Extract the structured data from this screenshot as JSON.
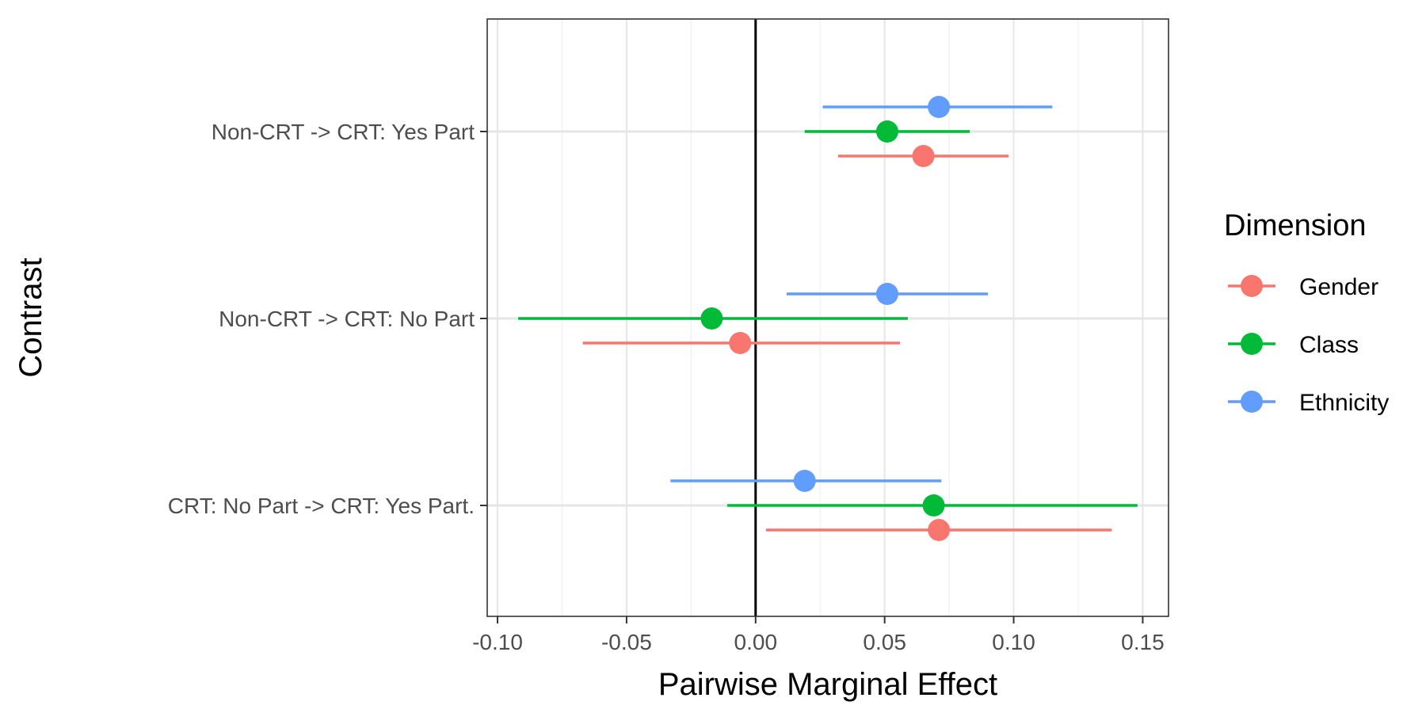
{
  "chart_data": {
    "type": "scatter",
    "title": "",
    "xlabel": "Pairwise Marginal Effect",
    "ylabel": "Contrast",
    "xlim": [
      -0.104,
      0.16
    ],
    "x_ticks": [
      -0.1,
      -0.05,
      0.0,
      0.05,
      0.1,
      0.15
    ],
    "x_tick_labels": [
      "-0.10",
      "-0.05",
      "0.00",
      "0.05",
      "0.10",
      "0.15"
    ],
    "categories": [
      "Non-CRT -> CRT: Yes Part",
      "Non-CRT -> CRT: No Part",
      "CRT: No Part -> CRT: Yes Part."
    ],
    "reference_line": 0,
    "grid": true,
    "legend": {
      "title": "Dimension",
      "position": "right"
    },
    "series": [
      {
        "name": "Gender",
        "color": "#F8766D",
        "points": [
          {
            "category": "Non-CRT -> CRT: Yes Part",
            "estimate": 0.065,
            "lower": 0.032,
            "upper": 0.098
          },
          {
            "category": "Non-CRT -> CRT: No Part",
            "estimate": -0.006,
            "lower": -0.067,
            "upper": 0.056
          },
          {
            "category": "CRT: No Part -> CRT: Yes Part.",
            "estimate": 0.071,
            "lower": 0.004,
            "upper": 0.138
          }
        ]
      },
      {
        "name": "Class",
        "color": "#00BA38",
        "points": [
          {
            "category": "Non-CRT -> CRT: Yes Part",
            "estimate": 0.051,
            "lower": 0.019,
            "upper": 0.083
          },
          {
            "category": "Non-CRT -> CRT: No Part",
            "estimate": -0.017,
            "lower": -0.092,
            "upper": 0.059
          },
          {
            "category": "CRT: No Part -> CRT: Yes Part.",
            "estimate": 0.069,
            "lower": -0.011,
            "upper": 0.148
          }
        ]
      },
      {
        "name": "Ethnicity",
        "color": "#619CFF",
        "points": [
          {
            "category": "Non-CRT -> CRT: Yes Part",
            "estimate": 0.071,
            "lower": 0.026,
            "upper": 0.115
          },
          {
            "category": "Non-CRT -> CRT: No Part",
            "estimate": 0.051,
            "lower": 0.012,
            "upper": 0.09
          },
          {
            "category": "CRT: No Part -> CRT: Yes Part.",
            "estimate": 0.019,
            "lower": -0.033,
            "upper": 0.072
          }
        ]
      }
    ]
  }
}
